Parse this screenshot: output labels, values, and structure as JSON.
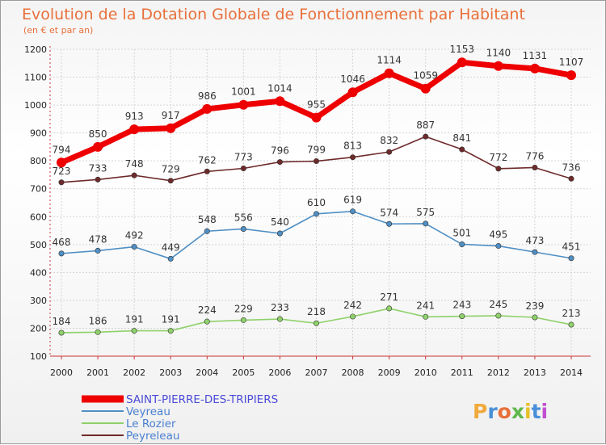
{
  "chart_data": {
    "type": "line",
    "title": "Evolution de la Dotation Globale de Fonctionnement par Habitant",
    "subtitle": "(en € et par an)",
    "x": [
      "2000",
      "2001",
      "2002",
      "2003",
      "2004",
      "2005",
      "2006",
      "2007",
      "2008",
      "2009",
      "2010",
      "2011",
      "2012",
      "2013",
      "2014"
    ],
    "ylim": [
      100,
      1200
    ],
    "yticks": [
      "100",
      "200",
      "300",
      "400",
      "500",
      "600",
      "700",
      "800",
      "900",
      "1000",
      "1100",
      "1200"
    ],
    "series": [
      {
        "name": "SAINT-PIERRE-DES-TRIPIERS",
        "color": "#ee0000",
        "values": [
          794,
          850,
          913,
          917,
          986,
          1001,
          1014,
          955,
          1046,
          1114,
          1059,
          1153,
          1140,
          1131,
          1107
        ]
      },
      {
        "name": "Veyreau",
        "color": "#4f8fc4",
        "values": [
          468,
          478,
          492,
          449,
          548,
          556,
          540,
          610,
          619,
          574,
          575,
          501,
          495,
          473,
          451
        ]
      },
      {
        "name": "Le Rozier",
        "color": "#8fd16a",
        "values": [
          184,
          186,
          191,
          191,
          224,
          229,
          233,
          218,
          242,
          271,
          241,
          243,
          245,
          239,
          213
        ]
      },
      {
        "name": "Peyreleau",
        "color": "#6e2a2a",
        "values": [
          723,
          733,
          748,
          729,
          762,
          773,
          796,
          799,
          813,
          832,
          887,
          841,
          772,
          776,
          736
        ]
      }
    ]
  },
  "logo": {
    "text": "Proxiti"
  }
}
